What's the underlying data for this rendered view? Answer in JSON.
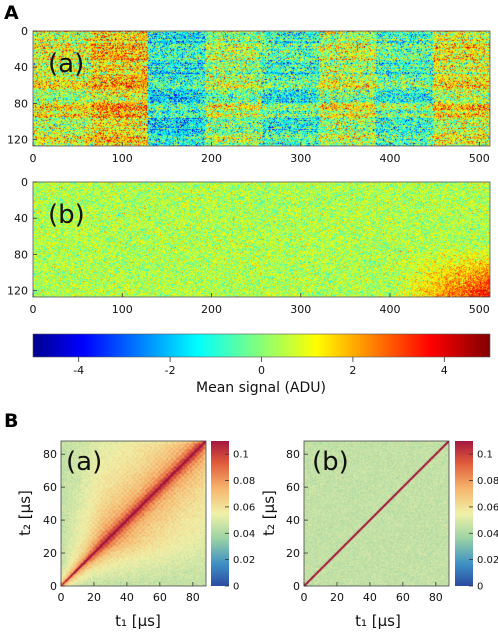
{
  "panels": {
    "A": "A",
    "B": "B"
  },
  "colors": {
    "jet": [
      "#00008f",
      "#0000ff",
      "#00ffff",
      "#ffff00",
      "#ff0000",
      "#800000"
    ],
    "heat": [
      "#2c4ba0",
      "#3d8fc4",
      "#9bd3a4",
      "#f1f1a8",
      "#f6b26b",
      "#e05a3b",
      "#a3173f"
    ]
  },
  "chart_data": [
    {
      "type": "heatmap",
      "label": "(a)",
      "xlim": [
        0,
        512
      ],
      "ylim": [
        0,
        127
      ],
      "y_axis": "inverted",
      "xticks": [
        "0",
        "100",
        "200",
        "300",
        "400",
        "500"
      ],
      "yticks": [
        "0",
        "40",
        "80",
        "120"
      ],
      "column_blocks": [
        {
          "x_range": [
            0,
            64
          ],
          "mean": 0.8
        },
        {
          "x_range": [
            64,
            128
          ],
          "mean": 1.6
        },
        {
          "x_range": [
            128,
            192
          ],
          "mean": -1.2
        },
        {
          "x_range": [
            192,
            256
          ],
          "mean": 0.2
        },
        {
          "x_range": [
            256,
            320
          ],
          "mean": -0.8
        },
        {
          "x_range": [
            320,
            384
          ],
          "mean": 0.5
        },
        {
          "x_range": [
            384,
            448
          ],
          "mean": -0.6
        },
        {
          "x_range": [
            448,
            512
          ],
          "mean": 1.0
        }
      ],
      "colorscale": "jet",
      "clim": [
        -5,
        5
      ]
    },
    {
      "type": "heatmap",
      "label": "(b)",
      "xlim": [
        0,
        512
      ],
      "ylim": [
        0,
        127
      ],
      "y_axis": "inverted",
      "xticks": [
        "0",
        "100",
        "200",
        "300",
        "400",
        "500"
      ],
      "yticks": [
        "0",
        "40",
        "80",
        "120"
      ],
      "mean_level": 0.4,
      "bottom_right_max": 3.5,
      "colorscale": "jet",
      "clim": [
        -5,
        5
      ]
    },
    {
      "type": "colorbar",
      "orientation": "horizontal",
      "range": [
        -5,
        5
      ],
      "ticks": [
        "-4",
        "-2",
        "0",
        "2",
        "4"
      ],
      "label": "Mean signal (ADU)"
    },
    {
      "type": "heatmap",
      "label": "(a)",
      "xlim": [
        0,
        88
      ],
      "ylim": [
        0,
        88
      ],
      "xticks": [
        "0",
        "20",
        "40",
        "60",
        "80"
      ],
      "yticks": [
        "0",
        "20",
        "40",
        "60",
        "80"
      ],
      "xlabel": "t₁ [μs]",
      "ylabel": "t₂ [μs]",
      "diagonal_value": 0.11,
      "background_value": 0.06,
      "grid_period_us": 3.2,
      "colorbar": {
        "range": [
          0,
          0.11
        ],
        "ticks": [
          "0",
          "0.02",
          "0.04",
          "0.06",
          "0.08",
          "0.1"
        ]
      }
    },
    {
      "type": "heatmap",
      "label": "(b)",
      "xlim": [
        0,
        88
      ],
      "ylim": [
        0,
        88
      ],
      "xticks": [
        "0",
        "20",
        "40",
        "60",
        "80"
      ],
      "yticks": [
        "0",
        "20",
        "40",
        "60",
        "80"
      ],
      "xlabel": "t₁ [μs]",
      "ylabel": "t₂ [μs]",
      "diagonal_value": 0.11,
      "background_value": 0.045,
      "colorbar": {
        "range": [
          0,
          0.11
        ],
        "ticks": [
          "0",
          "0.02",
          "0.04",
          "0.06",
          "0.08",
          "0.1"
        ]
      }
    }
  ]
}
